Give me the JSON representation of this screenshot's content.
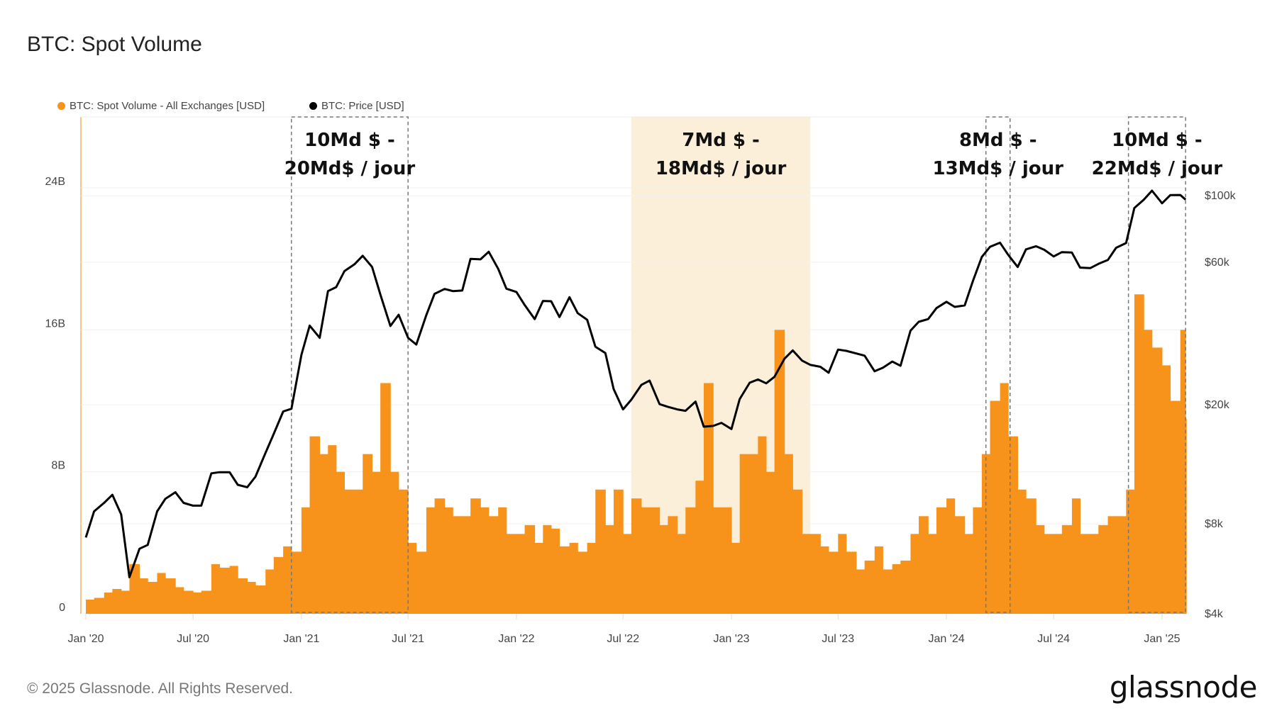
{
  "title": "BTC: Spot Volume",
  "legend": [
    {
      "label": "BTC: Spot Volume - All Exchanges [USD]",
      "color": "#f7931a"
    },
    {
      "label": "BTC: Price [USD]",
      "color": "#000000"
    }
  ],
  "footer": "© 2025 Glassnode. All Rights Reserved.",
  "logo": "glassnode",
  "chart_data": {
    "type": "bar+line",
    "title": "BTC: Spot Volume",
    "grid": true,
    "legend_position": "top-left",
    "y_left": {
      "ticks": [
        "0",
        "8B",
        "16B",
        "24B"
      ],
      "tick_values": [
        0,
        8,
        16,
        24
      ],
      "unit": "billion USD",
      "range": [
        0,
        27.5
      ]
    },
    "y_right": {
      "ticks": [
        "$4k",
        "$8k",
        "$20k",
        "$60k",
        "$100k"
      ],
      "tick_values": [
        4000,
        8000,
        20000,
        60000,
        100000
      ],
      "scale": "log"
    },
    "x_ticks": [
      "Jan '20",
      "Jul '20",
      "Jan '21",
      "Jul '21",
      "Jan '22",
      "Jul '22",
      "Jan '23",
      "Jul '23",
      "Jan '24",
      "Jul '24",
      "Jan '25"
    ],
    "x_tick_dates": [
      "2020-01-01",
      "2020-07-01",
      "2021-01-01",
      "2021-07-01",
      "2022-01-01",
      "2022-07-01",
      "2023-01-01",
      "2023-07-01",
      "2024-01-01",
      "2024-07-01",
      "2025-01-01"
    ],
    "x": [
      "2020-01-01",
      "2020-01-15",
      "2020-02-01",
      "2020-02-15",
      "2020-03-01",
      "2020-03-15",
      "2020-04-01",
      "2020-04-15",
      "2020-05-01",
      "2020-05-15",
      "2020-06-01",
      "2020-06-15",
      "2020-07-01",
      "2020-07-15",
      "2020-08-01",
      "2020-08-15",
      "2020-09-01",
      "2020-09-15",
      "2020-10-01",
      "2020-10-15",
      "2020-11-01",
      "2020-11-15",
      "2020-12-01",
      "2020-12-15",
      "2021-01-01",
      "2021-01-15",
      "2021-02-01",
      "2021-02-15",
      "2021-03-01",
      "2021-03-15",
      "2021-04-01",
      "2021-04-15",
      "2021-05-01",
      "2021-05-15",
      "2021-06-01",
      "2021-06-15",
      "2021-07-01",
      "2021-07-15",
      "2021-08-01",
      "2021-08-15",
      "2021-09-01",
      "2021-09-15",
      "2021-10-01",
      "2021-10-15",
      "2021-11-01",
      "2021-11-15",
      "2021-12-01",
      "2021-12-15",
      "2022-01-01",
      "2022-01-15",
      "2022-02-01",
      "2022-02-15",
      "2022-03-01",
      "2022-03-15",
      "2022-04-01",
      "2022-04-15",
      "2022-05-01",
      "2022-05-15",
      "2022-06-01",
      "2022-06-15",
      "2022-07-01",
      "2022-07-15",
      "2022-08-01",
      "2022-08-15",
      "2022-09-01",
      "2022-09-15",
      "2022-10-01",
      "2022-10-15",
      "2022-11-01",
      "2022-11-15",
      "2022-12-01",
      "2022-12-15",
      "2023-01-01",
      "2023-01-15",
      "2023-02-01",
      "2023-02-15",
      "2023-03-01",
      "2023-03-15",
      "2023-04-01",
      "2023-04-15",
      "2023-05-01",
      "2023-05-15",
      "2023-06-01",
      "2023-06-15",
      "2023-07-01",
      "2023-07-15",
      "2023-08-01",
      "2023-08-15",
      "2023-09-01",
      "2023-09-15",
      "2023-10-01",
      "2023-10-15",
      "2023-11-01",
      "2023-11-15",
      "2023-12-01",
      "2023-12-15",
      "2024-01-01",
      "2024-01-15",
      "2024-02-01",
      "2024-02-15",
      "2024-03-01",
      "2024-03-15",
      "2024-04-01",
      "2024-04-15",
      "2024-05-01",
      "2024-05-15",
      "2024-06-01",
      "2024-06-15",
      "2024-07-01",
      "2024-07-15",
      "2024-08-01",
      "2024-08-15",
      "2024-09-01",
      "2024-09-15",
      "2024-10-01",
      "2024-10-15",
      "2024-11-01",
      "2024-11-15",
      "2024-12-01",
      "2024-12-15",
      "2025-01-01",
      "2025-01-15",
      "2025-02-01",
      "2025-02-10"
    ],
    "series": [
      {
        "name": "BTC: Spot Volume - All Exchanges [USD]",
        "type": "bar",
        "axis": "left",
        "unit": "billion USD",
        "color": "#f7931a",
        "values": [
          0.8,
          0.9,
          1.2,
          1.4,
          1.3,
          2.8,
          2.0,
          1.8,
          2.3,
          2.0,
          1.5,
          1.3,
          1.2,
          1.3,
          2.8,
          2.6,
          2.7,
          2.0,
          1.8,
          1.6,
          2.5,
          3.2,
          3.8,
          3.5,
          6,
          10,
          9,
          9.5,
          8,
          7,
          7,
          9,
          8,
          13,
          8,
          7,
          4,
          3.5,
          6,
          6.5,
          6,
          5.5,
          5.5,
          6.5,
          6,
          5.5,
          6,
          4.5,
          4.5,
          5,
          4,
          5,
          4.8,
          3.8,
          4,
          3.5,
          4,
          7,
          5,
          7,
          4.5,
          6.5,
          6,
          6,
          5,
          5.5,
          4.5,
          6,
          7.5,
          13,
          6,
          6,
          4,
          9,
          9,
          10,
          8,
          16,
          9,
          7,
          4.5,
          4.5,
          3.8,
          3.5,
          4.5,
          3.5,
          2.5,
          3,
          3.8,
          2.5,
          2.8,
          3,
          4.5,
          5.5,
          4.5,
          6,
          6.5,
          5.5,
          4.5,
          6,
          9,
          12,
          13,
          10,
          7,
          6.5,
          5,
          4.5,
          4.5,
          5,
          6.5,
          4.5,
          4.5,
          5,
          5.5,
          5.5,
          7,
          18,
          16,
          15,
          14,
          12,
          16,
          11
        ]
      },
      {
        "name": "BTC: Price [USD]",
        "type": "line",
        "axis": "right",
        "unit": "USD",
        "color": "#000000",
        "values": [
          7200,
          8800,
          9400,
          10000,
          8600,
          5300,
          6600,
          6800,
          8800,
          9700,
          10200,
          9400,
          9200,
          9200,
          11800,
          11900,
          11900,
          10800,
          10600,
          11500,
          13800,
          16000,
          19000,
          19400,
          29400,
          36800,
          33500,
          48000,
          49500,
          56000,
          59000,
          63000,
          57800,
          46700,
          36700,
          40000,
          33500,
          31800,
          39900,
          47000,
          48800,
          48000,
          48200,
          61500,
          61300,
          65000,
          57000,
          48900,
          47700,
          43100,
          38700,
          44500,
          44400,
          39300,
          45800,
          40500,
          38500,
          31300,
          29800,
          22600,
          19300,
          20800,
          23300,
          24100,
          20100,
          19700,
          19300,
          19100,
          20500,
          16900,
          17000,
          17400,
          16600,
          20900,
          23700,
          24300,
          23600,
          24800,
          28500,
          30400,
          28100,
          27200,
          26800,
          25600,
          30600,
          30300,
          29700,
          29200,
          25900,
          26600,
          27900,
          27000,
          35400,
          37900,
          38700,
          42100,
          44200,
          42500,
          43000,
          51900,
          62400,
          67500,
          69700,
          63400,
          57800,
          66200,
          67800,
          66000,
          62700,
          64800,
          64600,
          57500,
          57300,
          59200,
          61000,
          67000,
          69500,
          91000,
          97000,
          104000,
          94400,
          100500,
          100600,
          97000
        ]
      }
    ],
    "annotations": [
      {
        "lines": [
          "10Md $ -",
          "20Md$ / jour"
        ],
        "style": "dashed-box",
        "from": "2020-12-15",
        "to": "2021-07-01"
      },
      {
        "lines": [
          "7Md $ -",
          "18Md$ / jour"
        ],
        "style": "shaded",
        "color": "#fcefd9",
        "from": "2022-07-15",
        "to": "2023-05-15"
      },
      {
        "lines": [
          "8Md $ -",
          "13Md$ / jour"
        ],
        "style": "dashed-box",
        "from": "2024-03-08",
        "to": "2024-04-18"
      },
      {
        "lines": [
          "10Md $ -",
          "22Md$ / jour"
        ],
        "style": "dashed-box",
        "from": "2024-11-05",
        "to": "2025-02-10"
      }
    ]
  }
}
